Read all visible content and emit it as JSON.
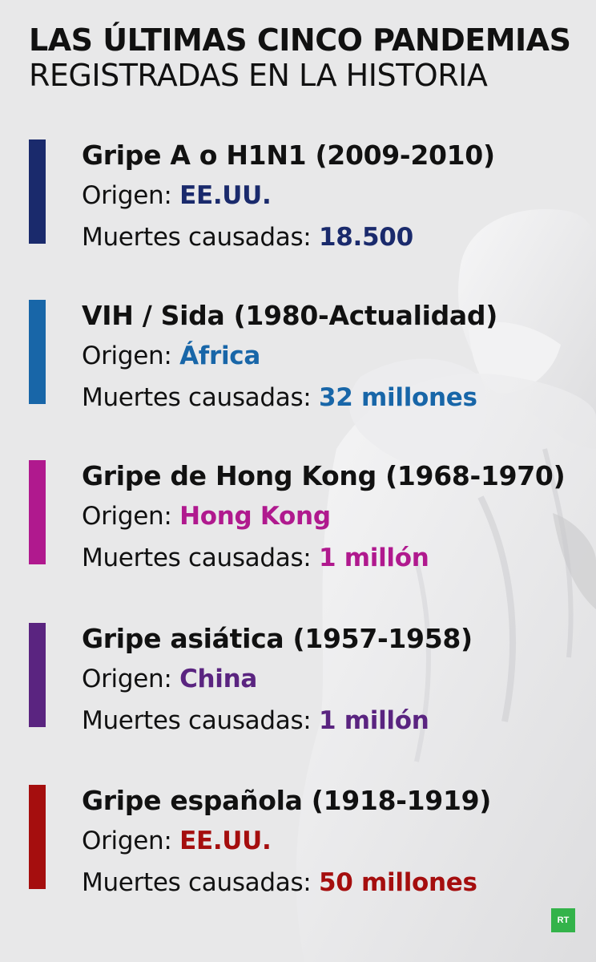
{
  "title": {
    "line1": "LAS ÚLTIMAS CINCO PANDEMIAS",
    "line2": "REGISTRADAS EN LA HISTORIA"
  },
  "labels": {
    "origin": "Origen:",
    "deaths": "Muertes causadas:"
  },
  "pandemics": [
    {
      "name": "Gripe A o H1N1 (2009-2010)",
      "origin": "EE.UU.",
      "deaths": "18.500",
      "color": "#1a2a6c"
    },
    {
      "name": "VIH / Sida (1980-Actualidad)",
      "origin": "África",
      "deaths": "32 millones",
      "color": "#1866a8"
    },
    {
      "name": "Gripe de Hong Kong (1968-1970)",
      "origin": "Hong Kong",
      "deaths": "1 millón",
      "color": "#b0198e"
    },
    {
      "name": "Gripe asiática (1957-1958)",
      "origin": "China",
      "deaths": "1 millón",
      "color": "#5a2480"
    },
    {
      "name": "Gripe española (1918-1919)",
      "origin": "EE.UU.",
      "deaths": "50 millones",
      "color": "#a50e0e"
    }
  ],
  "logo": "RT"
}
